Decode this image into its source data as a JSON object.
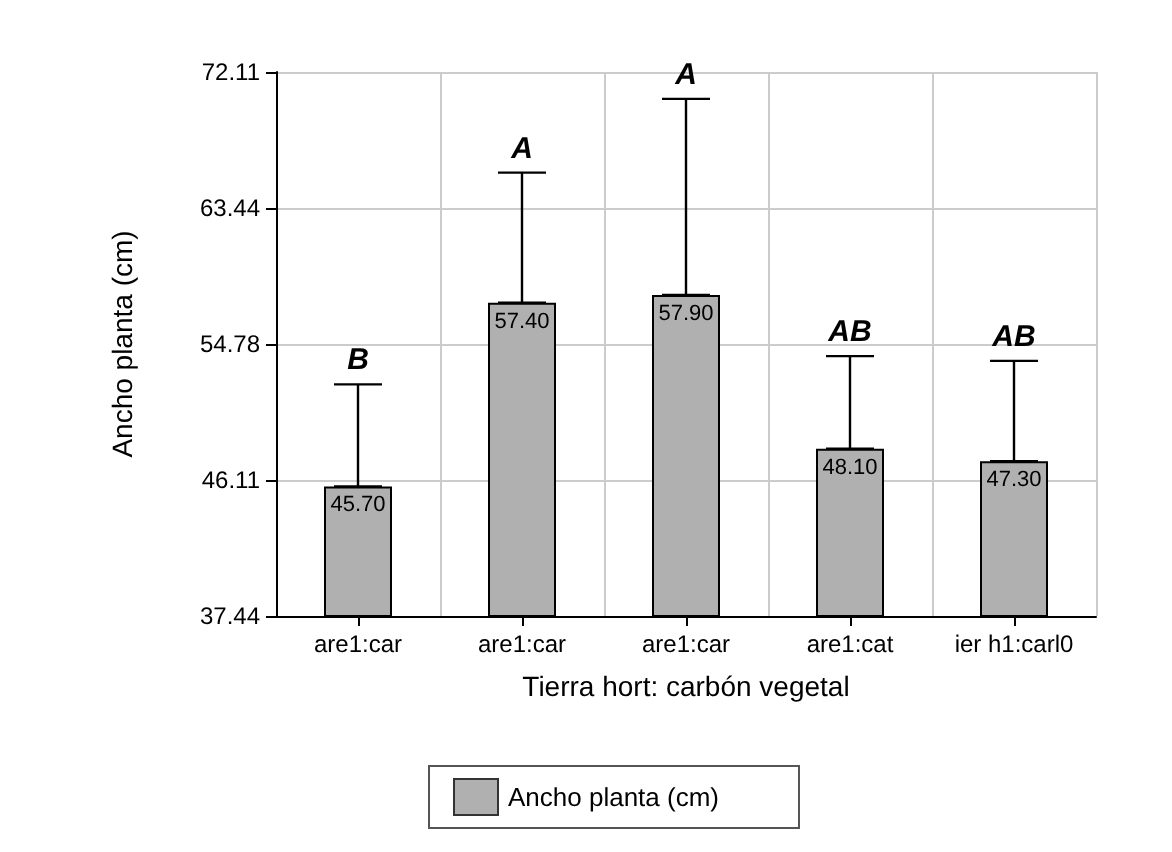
{
  "chart_data": {
    "type": "bar",
    "xlabel": "Tierra hort: carbón vegetal",
    "ylabel": "Ancho planta (cm)",
    "categories": [
      "are1:car",
      "are1:car",
      "are1:car",
      "are1:cat",
      "ier h1:carl0"
    ],
    "series": [
      {
        "name": "Ancho planta (cm)",
        "color": "#b0b0b0",
        "values": [
          45.7,
          57.4,
          57.9,
          48.1,
          47.3
        ],
        "value_labels": [
          "45.70",
          "57.40",
          "57.90",
          "48.10",
          "47.30"
        ],
        "errors": [
          [
            45.7,
            52.2
          ],
          [
            57.4,
            65.7
          ],
          [
            57.9,
            70.4
          ],
          [
            48.1,
            54.0
          ],
          [
            47.3,
            53.7
          ]
        ]
      }
    ],
    "ylim": [
      37.44,
      72.11
    ],
    "yticks": [
      37.44,
      46.11,
      54.78,
      63.44,
      72.11
    ],
    "grid": true,
    "legend": "bottom",
    "annotations": [
      "B",
      "A",
      "A",
      "AB",
      "AB"
    ]
  }
}
